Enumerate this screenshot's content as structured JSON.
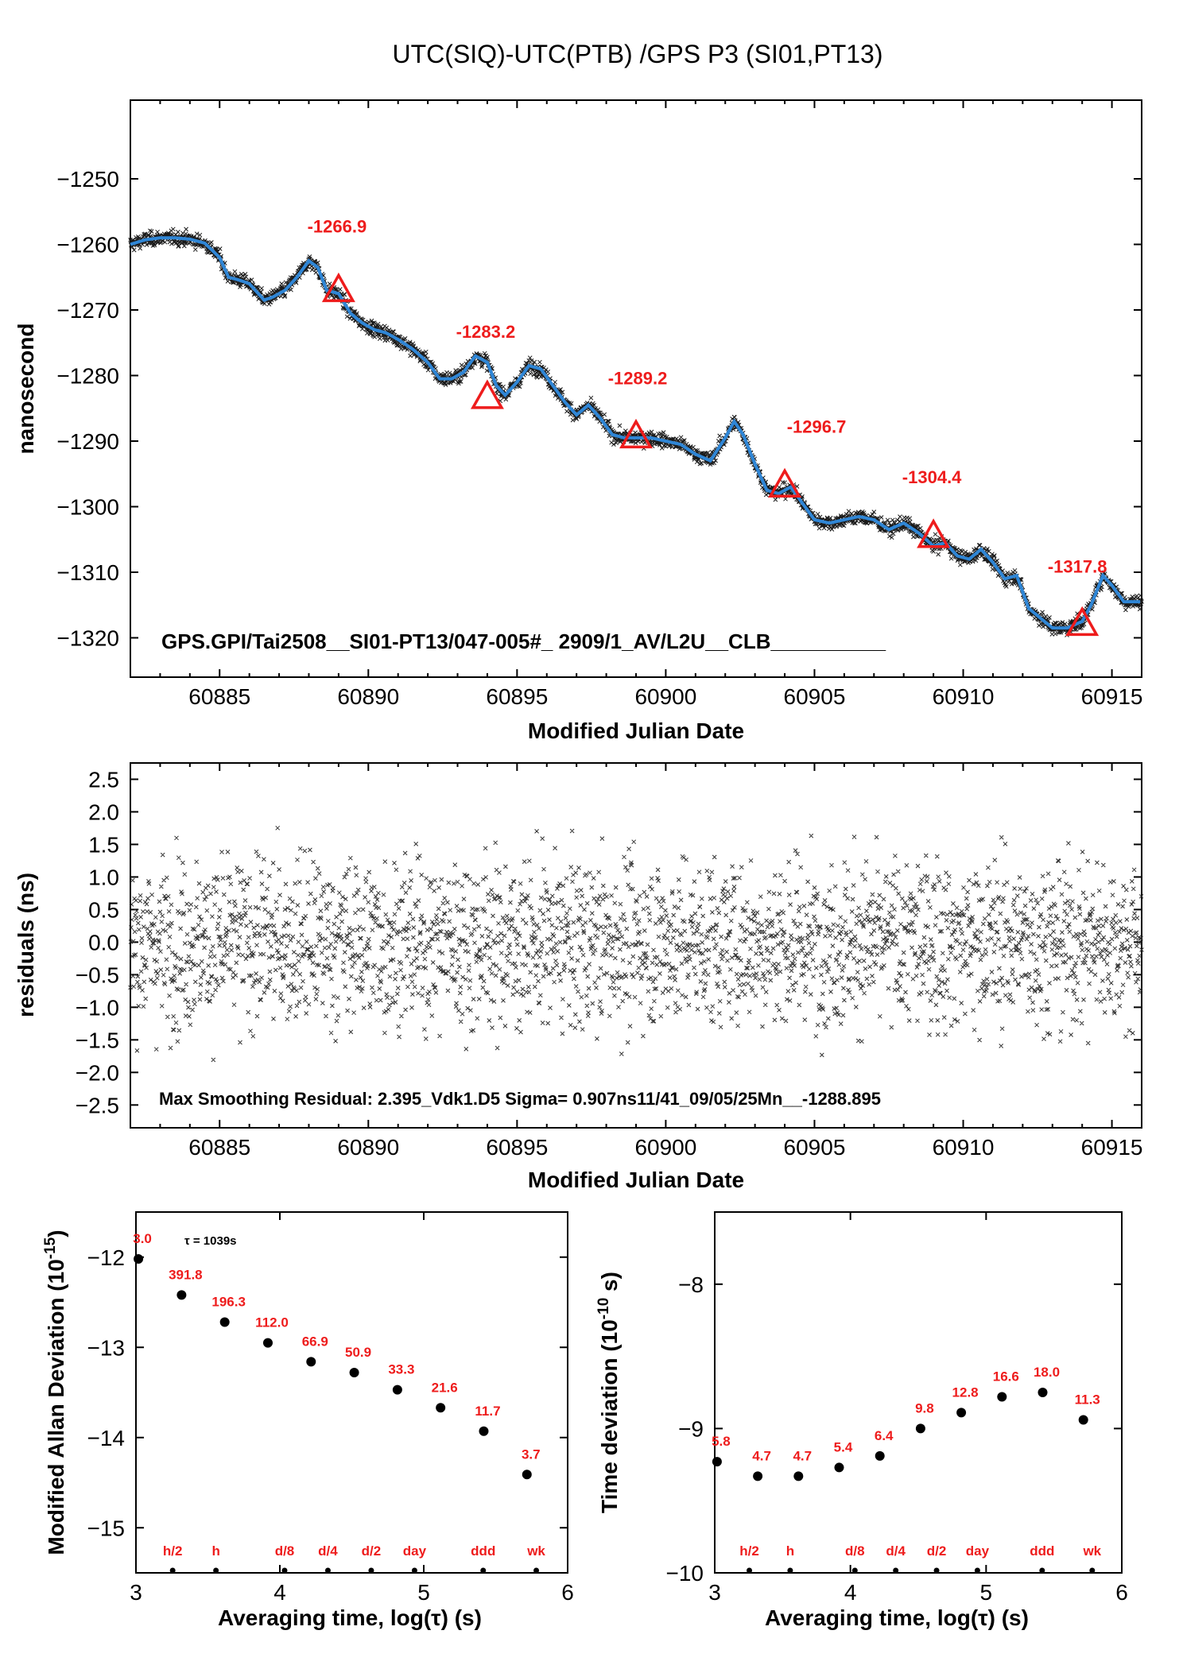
{
  "title": "UTC(SIQ)-UTC(PTB)  /GPS  P3  (SI01,PT13)",
  "chart_data": [
    {
      "type": "scatter",
      "name": "main",
      "ylabel": "nanosecond",
      "xlabel": "Modified Julian Date",
      "xlim": [
        60882,
        60916
      ],
      "ylim": [
        -1326,
        -1238
      ],
      "xticks": [
        60885,
        60890,
        60895,
        60900,
        60905,
        60910,
        60915
      ],
      "yticks": [
        -1250,
        -1260,
        -1270,
        -1280,
        -1290,
        -1300,
        -1310,
        -1320
      ],
      "curve": {
        "x": [
          60882,
          60882.5,
          60883,
          60883.5,
          60884,
          60884.5,
          60885,
          60885.3,
          60885.7,
          60886,
          60886.5,
          60886.8,
          60887.2,
          60887.6,
          60888,
          60888.3,
          60888.6,
          60889,
          60889.4,
          60889.8,
          60890.2,
          60890.6,
          60891,
          60891.5,
          60892,
          60892.4,
          60892.8,
          60893.2,
          60893.6,
          60894,
          60894.3,
          60894.6,
          60895,
          60895.4,
          60895.8,
          60896.2,
          60896.6,
          60897,
          60897.4,
          60897.8,
          60898.2,
          60898.6,
          60899,
          60899.5,
          60900,
          60900.5,
          60901,
          60901.5,
          60902,
          60902.3,
          60902.6,
          60903,
          60903.4,
          60903.8,
          60904.2,
          60904.6,
          60905,
          60905.5,
          60906,
          60906.5,
          60907,
          60907.5,
          60908,
          60908.5,
          60909,
          60909.4,
          60909.8,
          60910.2,
          60910.6,
          60911,
          60911.4,
          60911.8,
          60912.2,
          60912.6,
          60913,
          60913.5,
          60914,
          60914.3,
          60914.7,
          60915,
          60915.4,
          60916
        ],
        "y": [
          -1260.0,
          -1259.3,
          -1259.0,
          -1259.0,
          -1259.2,
          -1259.8,
          -1262.0,
          -1265.0,
          -1265.5,
          -1266.0,
          -1268.5,
          -1268.0,
          -1267.0,
          -1265.0,
          -1262.5,
          -1263.5,
          -1267.0,
          -1267.5,
          -1270.5,
          -1272.0,
          -1273.0,
          -1273.5,
          -1274.5,
          -1276.0,
          -1278.0,
          -1280.5,
          -1280.5,
          -1279.5,
          -1277.0,
          -1278.0,
          -1281.5,
          -1283.0,
          -1281.0,
          -1278.5,
          -1279.0,
          -1281.5,
          -1284.0,
          -1286.0,
          -1284.5,
          -1286.5,
          -1289.0,
          -1289.5,
          -1289.5,
          -1289.5,
          -1290.0,
          -1290.5,
          -1292.0,
          -1293.0,
          -1289.5,
          -1287.0,
          -1289.0,
          -1293.5,
          -1297.5,
          -1298.0,
          -1297.0,
          -1299.5,
          -1302.0,
          -1302.5,
          -1302.0,
          -1301.5,
          -1302.0,
          -1303.5,
          -1302.5,
          -1304.0,
          -1306.0,
          -1305.5,
          -1307.5,
          -1308.0,
          -1306.5,
          -1308.5,
          -1311.0,
          -1310.5,
          -1315.5,
          -1317.0,
          -1318.5,
          -1318.5,
          -1317.5,
          -1315.0,
          -1310.5,
          -1312.0,
          -1314.5,
          -1314.5
        ]
      },
      "markers": [
        {
          "x": 60889,
          "y": -1266.9,
          "label": "-1266.9"
        },
        {
          "x": 60894,
          "y": -1283.2,
          "label": "-1283.2"
        },
        {
          "x": 60899,
          "y": -1289.2,
          "label": "-1289.2"
        },
        {
          "x": 60904,
          "y": -1296.7,
          "label": "-1296.7"
        },
        {
          "x": 60909,
          "y": -1304.4,
          "label": "-1304.4"
        },
        {
          "x": 60914,
          "y": -1317.8,
          "label": "-1317.8"
        }
      ],
      "footer": "GPS.GPI/Tai2508__SI01-PT13/047-005#_  2909/1_AV/L2U__CLB__________",
      "colors": {
        "curve": "#2f86d6",
        "points": "#1a1a1a",
        "markers": "#ee1c1c"
      }
    },
    {
      "type": "scatter",
      "name": "residuals",
      "ylabel": "residuals (ns)",
      "xlabel": "Modified Julian Date",
      "xlim": [
        60882,
        60916
      ],
      "ylim": [
        -2.85,
        2.75
      ],
      "xticks": [
        60885,
        60890,
        60895,
        60900,
        60905,
        60910,
        60915
      ],
      "yticks": [
        2.5,
        2.0,
        1.5,
        1.0,
        0.5,
        0.0,
        -0.5,
        -1.0,
        -1.5,
        -2.0,
        -2.5
      ],
      "ytick_labels": [
        "2.5",
        "2.0",
        "1.5",
        "1.0",
        "0.5",
        "0.0",
        "−0.5",
        "−1.0",
        "−1.5",
        "−2.0",
        "−2.5"
      ],
      "footer": "Max Smoothing Residual: 2.395_Vdk1.D5  Sigma= 0.907ns11/41_09/05/25Mn__-1288.895"
    },
    {
      "type": "scatter",
      "name": "mdev",
      "ylabel": "Modified Allan Deviation (10",
      "ylabel_exp": "-15",
      "ylabel_tail": ")",
      "xlabel": "Averaging time, log(τ) (s)",
      "xlim": [
        3,
        6
      ],
      "ylim": [
        -15.5,
        -11.5
      ],
      "xticks": [
        3,
        4,
        5,
        6
      ],
      "yticks": [
        -12,
        -13,
        -14,
        -15
      ],
      "tau_note": "τ = 1039s",
      "x": [
        3.017,
        3.317,
        3.617,
        3.917,
        4.217,
        4.517,
        4.817,
        5.117,
        5.417,
        5.717
      ],
      "y": [
        -12.02,
        -12.42,
        -12.72,
        -12.95,
        -13.16,
        -13.28,
        -13.47,
        -13.67,
        -13.93,
        -14.41
      ],
      "labels": [
        "3.0",
        "391.8",
        "196.3",
        "112.0",
        "66.9",
        "50.9",
        "33.3",
        "21.6",
        "11.7",
        "3.7"
      ],
      "markers": [
        {
          "x": 3.255,
          "label": "h/2"
        },
        {
          "x": 3.556,
          "label": "h"
        },
        {
          "x": 4.033,
          "label": "d/8"
        },
        {
          "x": 4.334,
          "label": "d/4"
        },
        {
          "x": 4.635,
          "label": "d/2"
        },
        {
          "x": 4.936,
          "label": "day"
        },
        {
          "x": 5.413,
          "label": "ddd"
        },
        {
          "x": 5.782,
          "label": "wk"
        }
      ]
    },
    {
      "type": "scatter",
      "name": "tdev",
      "ylabel": "Time deviation (10",
      "ylabel_exp": "-10",
      "ylabel_tail": " s)",
      "xlabel": "Averaging time, log(τ) (s)",
      "xlim": [
        3,
        6
      ],
      "ylim": [
        -10,
        -7.5
      ],
      "xticks": [
        3,
        4,
        5,
        6
      ],
      "yticks": [
        -8,
        -9,
        -10
      ],
      "x": [
        3.017,
        3.317,
        3.617,
        3.917,
        4.217,
        4.517,
        4.817,
        5.117,
        5.417,
        5.717
      ],
      "y": [
        -9.23,
        -9.33,
        -9.33,
        -9.27,
        -9.19,
        -9.0,
        -8.89,
        -8.78,
        -8.75,
        -8.94
      ],
      "labels": [
        "5.8",
        "4.7",
        "4.7",
        "5.4",
        "6.4",
        "9.8",
        "12.8",
        "16.6",
        "18.0",
        "11.3"
      ],
      "markers": [
        {
          "x": 3.255,
          "label": "h/2"
        },
        {
          "x": 3.556,
          "label": "h"
        },
        {
          "x": 4.033,
          "label": "d/8"
        },
        {
          "x": 4.334,
          "label": "d/4"
        },
        {
          "x": 4.635,
          "label": "d/2"
        },
        {
          "x": 4.936,
          "label": "day"
        },
        {
          "x": 5.413,
          "label": "ddd"
        },
        {
          "x": 5.782,
          "label": "wk"
        }
      ]
    }
  ]
}
